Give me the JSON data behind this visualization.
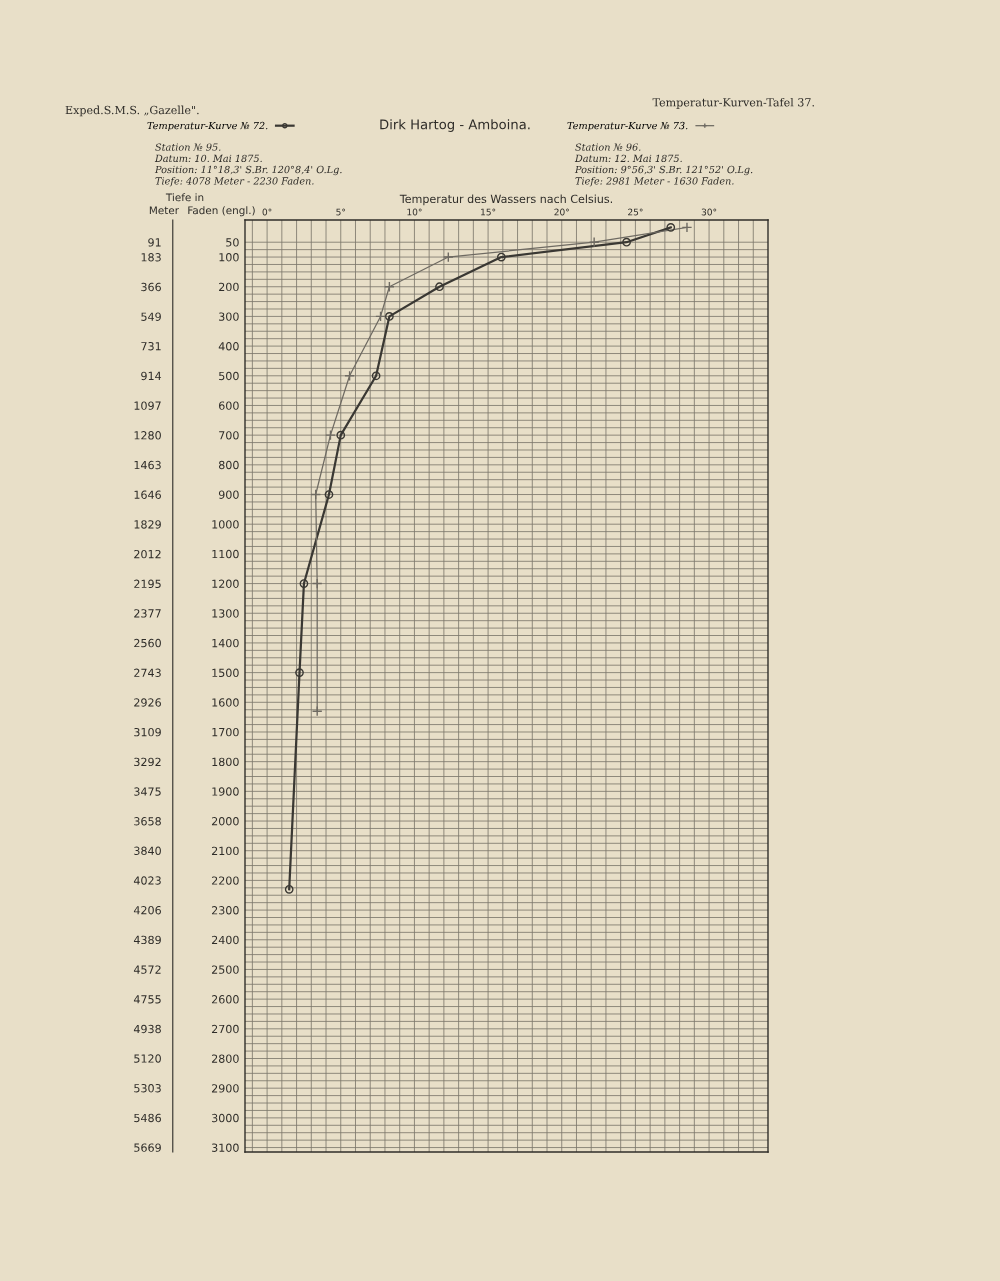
{
  "chart_data": {
    "type": "line",
    "title": "Dirk Hartog - Amboina.",
    "xlabel": "Temperatur des Wassers nach Celsius.",
    "ylabel": "Faden (engl.)",
    "y2label": "Meter",
    "annotations": [
      "Exped.S.M.S. „Gazelle\".",
      "Temperatur-Kurven-Tafel 37.",
      "Tiefe in",
      "Station № 95.",
      "Datum: 10. Mai 1875.",
      "Position: 11°18,3' S.Br. 120°8,4' O.Lg.",
      "Tiefe: 4078 Meter - 2230 Faden.",
      "Station № 96.",
      "Datum: 12. Mai 1875.",
      "Position: 9°56,3' S.Br. 121°52' O.Lg.",
      "Tiefe: 2981 Meter - 1630 Faden."
    ],
    "series": [
      {
        "name": "Temperatur-Kurve № 72.",
        "color": "#3a3833",
        "marker": "circle",
        "line_style": "solid",
        "x": [
          27.4,
          24.4,
          15.9,
          11.7,
          8.3,
          7.4,
          5.0,
          4.2,
          2.5,
          2.2,
          1.5
        ],
        "values": [
          0,
          50,
          100,
          200,
          300,
          500,
          700,
          900,
          1200,
          1500,
          2230
        ]
      },
      {
        "name": "Temperatur-Kurve № 73.",
        "color": "#6e6a62",
        "marker": "cross",
        "line_style": "solid",
        "x": [
          28.5,
          22.2,
          12.3,
          8.3,
          7.7,
          5.6,
          4.3,
          3.3,
          3.4,
          3.4
        ],
        "values": [
          0,
          50,
          100,
          200,
          300,
          500,
          700,
          900,
          1200,
          1630
        ]
      }
    ],
    "xlim": [
      -1.5,
      34
    ],
    "xticks": [
      {
        "value": -1,
        "label": null
      },
      {
        "value": 0,
        "label": "0°"
      },
      {
        "value": 1,
        "label": null
      },
      {
        "value": 2,
        "label": null
      },
      {
        "value": 3,
        "label": null
      },
      {
        "value": 4,
        "label": null
      },
      {
        "value": 5,
        "label": "5°"
      },
      {
        "value": 6,
        "label": null
      },
      {
        "value": 7,
        "label": null
      },
      {
        "value": 8,
        "label": null
      },
      {
        "value": 9,
        "label": null
      },
      {
        "value": 10,
        "label": "10°"
      },
      {
        "value": 11,
        "label": null
      },
      {
        "value": 12,
        "label": null
      },
      {
        "value": 13,
        "label": null
      },
      {
        "value": 14,
        "label": null
      },
      {
        "value": 15,
        "label": "15°"
      },
      {
        "value": 16,
        "label": null
      },
      {
        "value": 17,
        "label": null
      },
      {
        "value": 18,
        "label": null
      },
      {
        "value": 19,
        "label": null
      },
      {
        "value": 20,
        "label": "20°"
      },
      {
        "value": 21,
        "label": null
      },
      {
        "value": 22,
        "label": null
      },
      {
        "value": 23,
        "label": null
      },
      {
        "value": 24,
        "label": null
      },
      {
        "value": 25,
        "label": "25°"
      },
      {
        "value": 26,
        "label": null
      },
      {
        "value": 27,
        "label": null
      },
      {
        "value": 28,
        "label": null
      },
      {
        "value": 29,
        "label": null
      },
      {
        "value": 30,
        "label": "30°"
      },
      {
        "value": 31,
        "label": null
      },
      {
        "value": 32,
        "label": null
      },
      {
        "value": 33,
        "label": null
      }
    ],
    "ylim": [
      3115,
      -25
    ],
    "yticks": [
      50,
      {
        "value": 75,
        "label": null
      },
      100,
      {
        "value": 125,
        "label": null
      },
      {
        "value": 150,
        "label": null
      },
      {
        "value": 175,
        "label": null
      },
      200,
      {
        "value": 225,
        "label": null
      },
      {
        "value": 250,
        "label": null
      },
      {
        "value": 275,
        "label": null
      },
      300,
      {
        "value": 325,
        "label": null
      },
      {
        "value": 350,
        "label": null
      },
      {
        "value": 375,
        "label": null
      },
      400,
      {
        "value": 425,
        "label": null
      },
      {
        "value": 450,
        "label": null
      },
      {
        "value": 475,
        "label": null
      },
      500,
      {
        "value": 525,
        "label": null
      },
      {
        "value": 550,
        "label": null
      },
      {
        "value": 575,
        "label": null
      },
      600,
      {
        "value": 625,
        "label": null
      },
      {
        "value": 650,
        "label": null
      },
      {
        "value": 675,
        "label": null
      },
      700,
      {
        "value": 725,
        "label": null
      },
      {
        "value": 750,
        "label": null
      },
      {
        "value": 775,
        "label": null
      },
      800,
      {
        "value": 825,
        "label": null
      },
      {
        "value": 850,
        "label": null
      },
      {
        "value": 875,
        "label": null
      },
      900,
      {
        "value": 925,
        "label": null
      },
      {
        "value": 950,
        "label": null
      },
      {
        "value": 975,
        "label": null
      },
      1000,
      {
        "value": 1025,
        "label": null
      },
      {
        "value": 1050,
        "label": null
      },
      {
        "value": 1075,
        "label": null
      },
      1100,
      {
        "value": 1125,
        "label": null
      },
      {
        "value": 1150,
        "label": null
      },
      {
        "value": 1175,
        "label": null
      },
      1200,
      {
        "value": 1225,
        "label": null
      },
      {
        "value": 1250,
        "label": null
      },
      {
        "value": 1275,
        "label": null
      },
      1300,
      {
        "value": 1325,
        "label": null
      },
      {
        "value": 1350,
        "label": null
      },
      {
        "value": 1375,
        "label": null
      },
      1400,
      {
        "value": 1425,
        "label": null
      },
      {
        "value": 1450,
        "label": null
      },
      {
        "value": 1475,
        "label": null
      },
      1500,
      {
        "value": 1525,
        "label": null
      },
      {
        "value": 1550,
        "label": null
      },
      {
        "value": 1575,
        "label": null
      },
      1600,
      {
        "value": 1625,
        "label": null
      },
      {
        "value": 1650,
        "label": null
      },
      {
        "value": 1675,
        "label": null
      },
      1700,
      {
        "value": 1725,
        "label": null
      },
      {
        "value": 1750,
        "label": null
      },
      {
        "value": 1775,
        "label": null
      },
      1800,
      {
        "value": 1825,
        "label": null
      },
      {
        "value": 1850,
        "label": null
      },
      {
        "value": 1875,
        "label": null
      },
      1900,
      {
        "value": 1925,
        "label": null
      },
      {
        "value": 1950,
        "label": null
      },
      {
        "value": 1975,
        "label": null
      },
      2000,
      {
        "value": 2025,
        "label": null
      },
      {
        "value": 2050,
        "label": null
      },
      {
        "value": 2075,
        "label": null
      },
      2100,
      {
        "value": 2125,
        "label": null
      },
      {
        "value": 2150,
        "label": null
      },
      {
        "value": 2175,
        "label": null
      },
      2200,
      {
        "value": 2225,
        "label": null
      },
      {
        "value": 2250,
        "label": null
      },
      {
        "value": 2275,
        "label": null
      },
      2300,
      {
        "value": 2325,
        "label": null
      },
      {
        "value": 2350,
        "label": null
      },
      {
        "value": 2375,
        "label": null
      },
      2400,
      {
        "value": 2425,
        "label": null
      },
      {
        "value": 2450,
        "label": null
      },
      {
        "value": 2475,
        "label": null
      },
      2500,
      {
        "value": 2525,
        "label": null
      },
      {
        "value": 2550,
        "label": null
      },
      {
        "value": 2575,
        "label": null
      },
      2600,
      {
        "value": 2625,
        "label": null
      },
      {
        "value": 2650,
        "label": null
      },
      {
        "value": 2675,
        "label": null
      },
      2700,
      {
        "value": 2725,
        "label": null
      },
      {
        "value": 2750,
        "label": null
      },
      {
        "value": 2775,
        "label": null
      },
      2800,
      {
        "value": 2825,
        "label": null
      },
      {
        "value": 2850,
        "label": null
      },
      {
        "value": 2875,
        "label": null
      },
      2900,
      {
        "value": 2925,
        "label": null
      },
      {
        "value": 2950,
        "label": null
      },
      {
        "value": 2975,
        "label": null
      },
      3000,
      {
        "value": 3025,
        "label": null
      },
      {
        "value": 3050,
        "label": null
      },
      {
        "value": 3075,
        "label": null
      },
      3100
    ],
    "y2lim": [
      5697,
      -46
    ],
    "y2ticks": [
      91,
      183,
      366,
      549,
      731,
      914,
      1097,
      1280,
      1463,
      1646,
      1829,
      2012,
      2195,
      2377,
      2560,
      2743,
      2926,
      3109,
      3292,
      3475,
      3658,
      3840,
      4023,
      4206,
      4389,
      4572,
      4755,
      4938,
      5120,
      5303,
      5486,
      5669
    ],
    "grid": true,
    "legend": "top"
  }
}
